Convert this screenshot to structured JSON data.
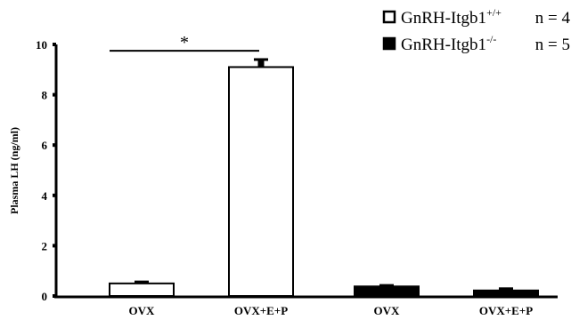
{
  "chart_data": {
    "type": "bar",
    "title": "",
    "xlabel": "",
    "ylabel": "Plasma LH (ng/ml)",
    "ylim": [
      0,
      10
    ],
    "yticks": [
      0,
      2,
      4,
      6,
      8,
      10
    ],
    "grid": false,
    "legend_position": "top-right",
    "categories": [
      "OVX",
      "OVX+E+P",
      "OVX",
      "OVX+E+P"
    ],
    "bars": [
      {
        "category": "OVX",
        "group": "GnRH-Itgb1+/+",
        "value": 0.5,
        "error": 0.06,
        "fill": "#ffffff"
      },
      {
        "category": "OVX+E+P",
        "group": "GnRH-Itgb1+/+",
        "value": 9.1,
        "error": 0.3,
        "fill": "#ffffff"
      },
      {
        "category": "OVX",
        "group": "GnRH-Itgb1-/-",
        "value": 0.38,
        "error": 0.04,
        "fill": "#000000"
      },
      {
        "category": "OVX+E+P",
        "group": "GnRH-Itgb1-/-",
        "value": 0.22,
        "error": 0.07,
        "fill": "#000000"
      }
    ],
    "legend": [
      {
        "base": "GnRH-Itgb1",
        "sup": "+/+",
        "n": "n = 4",
        "fill": "#ffffff"
      },
      {
        "base": "GnRH-Itgb1",
        "sup": "-/-",
        "n": "n = 5",
        "fill": "#000000"
      }
    ],
    "annotations": [
      {
        "text": "*",
        "from_category_index": 0,
        "to_category_index": 1,
        "y": 9.75
      }
    ]
  }
}
